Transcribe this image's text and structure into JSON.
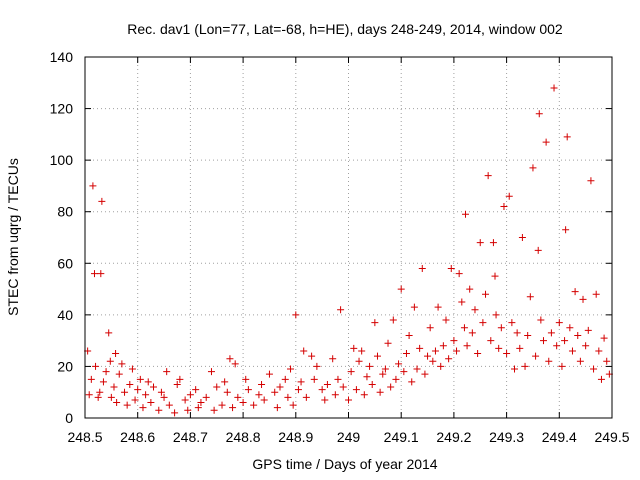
{
  "chart_data": {
    "type": "scatter",
    "title": "Rec. dav1 (Lon=77, Lat=-68, h=HE), days 248-249, 2014, window 002",
    "xlabel": "GPS time / Days of year 2014",
    "ylabel": "STEC from uqrg / TECUs",
    "xlim": [
      248.5,
      249.5
    ],
    "ylim": [
      0,
      140
    ],
    "xticks": [
      "248.5",
      "248.6",
      "248.7",
      "248.8",
      "248.9",
      "249",
      "249.1",
      "249.2",
      "249.3",
      "249.4",
      "249.5"
    ],
    "yticks": [
      "0",
      "20",
      "40",
      "60",
      "80",
      "100",
      "120",
      "140"
    ],
    "grid": true,
    "marker": "plus",
    "color": "#d40000",
    "points": [
      [
        248.505,
        26
      ],
      [
        248.508,
        9
      ],
      [
        248.512,
        15
      ],
      [
        248.515,
        90
      ],
      [
        248.518,
        56
      ],
      [
        248.52,
        20
      ],
      [
        248.525,
        8
      ],
      [
        248.528,
        10
      ],
      [
        248.532,
        84
      ],
      [
        248.535,
        14
      ],
      [
        248.53,
        56
      ],
      [
        248.54,
        18
      ],
      [
        248.545,
        33
      ],
      [
        248.548,
        22
      ],
      [
        248.55,
        8
      ],
      [
        248.555,
        12
      ],
      [
        248.558,
        25
      ],
      [
        248.56,
        6
      ],
      [
        248.565,
        17
      ],
      [
        248.57,
        21
      ],
      [
        248.575,
        10
      ],
      [
        248.58,
        5
      ],
      [
        248.585,
        13
      ],
      [
        248.59,
        19
      ],
      [
        248.595,
        7
      ],
      [
        248.6,
        11
      ],
      [
        248.605,
        15
      ],
      [
        248.61,
        4
      ],
      [
        248.615,
        9
      ],
      [
        248.62,
        14
      ],
      [
        248.625,
        6
      ],
      [
        248.63,
        12
      ],
      [
        248.64,
        3
      ],
      [
        248.645,
        10
      ],
      [
        248.65,
        8
      ],
      [
        248.655,
        18
      ],
      [
        248.66,
        5
      ],
      [
        248.67,
        2
      ],
      [
        248.675,
        13
      ],
      [
        248.68,
        15
      ],
      [
        248.69,
        7
      ],
      [
        248.695,
        3
      ],
      [
        248.7,
        9
      ],
      [
        248.71,
        11
      ],
      [
        248.715,
        4
      ],
      [
        248.72,
        6
      ],
      [
        248.73,
        8
      ],
      [
        248.74,
        18
      ],
      [
        248.745,
        3
      ],
      [
        248.75,
        12
      ],
      [
        248.76,
        5
      ],
      [
        248.765,
        14
      ],
      [
        248.77,
        10
      ],
      [
        248.775,
        23
      ],
      [
        248.78,
        4
      ],
      [
        248.785,
        21
      ],
      [
        248.79,
        8
      ],
      [
        248.8,
        6
      ],
      [
        248.805,
        15
      ],
      [
        248.81,
        11
      ],
      [
        248.82,
        5
      ],
      [
        248.83,
        9
      ],
      [
        248.835,
        13
      ],
      [
        248.84,
        7
      ],
      [
        248.85,
        17
      ],
      [
        248.86,
        10
      ],
      [
        248.865,
        4
      ],
      [
        248.87,
        12
      ],
      [
        248.88,
        15
      ],
      [
        248.885,
        8
      ],
      [
        248.89,
        19
      ],
      [
        248.895,
        5
      ],
      [
        248.9,
        40
      ],
      [
        248.905,
        11
      ],
      [
        248.91,
        14
      ],
      [
        248.915,
        26
      ],
      [
        248.92,
        8
      ],
      [
        248.93,
        24
      ],
      [
        248.935,
        15
      ],
      [
        248.94,
        20
      ],
      [
        248.95,
        11
      ],
      [
        248.955,
        7
      ],
      [
        248.96,
        13
      ],
      [
        248.97,
        23
      ],
      [
        248.975,
        9
      ],
      [
        248.98,
        15
      ],
      [
        248.985,
        42
      ],
      [
        248.99,
        12
      ],
      [
        249.0,
        7
      ],
      [
        249.005,
        18
      ],
      [
        249.01,
        27
      ],
      [
        249.015,
        11
      ],
      [
        249.02,
        22
      ],
      [
        249.025,
        26
      ],
      [
        249.03,
        9
      ],
      [
        249.035,
        16
      ],
      [
        249.04,
        20
      ],
      [
        249.045,
        13
      ],
      [
        249.05,
        37
      ],
      [
        249.055,
        24
      ],
      [
        249.06,
        10
      ],
      [
        249.065,
        17
      ],
      [
        249.07,
        19
      ],
      [
        249.075,
        29
      ],
      [
        249.08,
        12
      ],
      [
        249.085,
        38
      ],
      [
        249.09,
        15
      ],
      [
        249.095,
        21
      ],
      [
        249.1,
        50
      ],
      [
        249.105,
        18
      ],
      [
        249.11,
        25
      ],
      [
        249.115,
        32
      ],
      [
        249.12,
        14
      ],
      [
        249.125,
        43
      ],
      [
        249.13,
        19
      ],
      [
        249.135,
        27
      ],
      [
        249.14,
        58
      ],
      [
        249.145,
        17
      ],
      [
        249.15,
        24
      ],
      [
        249.155,
        35
      ],
      [
        249.16,
        22
      ],
      [
        249.165,
        26
      ],
      [
        249.17,
        43
      ],
      [
        249.175,
        20
      ],
      [
        249.18,
        28
      ],
      [
        249.185,
        38
      ],
      [
        249.19,
        23
      ],
      [
        249.195,
        58
      ],
      [
        249.2,
        30
      ],
      [
        249.205,
        26
      ],
      [
        249.21,
        56
      ],
      [
        249.215,
        45
      ],
      [
        249.22,
        35
      ],
      [
        249.222,
        79
      ],
      [
        249.225,
        28
      ],
      [
        249.23,
        50
      ],
      [
        249.235,
        33
      ],
      [
        249.24,
        42
      ],
      [
        249.245,
        25
      ],
      [
        249.25,
        68
      ],
      [
        249.255,
        37
      ],
      [
        249.26,
        48
      ],
      [
        249.265,
        94
      ],
      [
        249.27,
        30
      ],
      [
        249.275,
        68
      ],
      [
        249.278,
        55
      ],
      [
        249.28,
        40
      ],
      [
        249.285,
        27
      ],
      [
        249.29,
        35
      ],
      [
        249.295,
        82
      ],
      [
        249.3,
        25
      ],
      [
        249.305,
        86
      ],
      [
        249.31,
        37
      ],
      [
        249.315,
        19
      ],
      [
        249.32,
        33
      ],
      [
        249.325,
        27
      ],
      [
        249.33,
        70
      ],
      [
        249.335,
        20
      ],
      [
        249.34,
        32
      ],
      [
        249.345,
        47
      ],
      [
        249.35,
        97
      ],
      [
        249.355,
        24
      ],
      [
        249.36,
        65
      ],
      [
        249.362,
        118
      ],
      [
        249.365,
        38
      ],
      [
        249.37,
        30
      ],
      [
        249.375,
        107
      ],
      [
        249.38,
        22
      ],
      [
        249.385,
        33
      ],
      [
        249.39,
        128
      ],
      [
        249.395,
        28
      ],
      [
        249.4,
        37
      ],
      [
        249.405,
        20
      ],
      [
        249.41,
        30
      ],
      [
        249.412,
        73
      ],
      [
        249.415,
        109
      ],
      [
        249.42,
        35
      ],
      [
        249.425,
        26
      ],
      [
        249.43,
        49
      ],
      [
        249.435,
        32
      ],
      [
        249.44,
        22
      ],
      [
        249.445,
        46
      ],
      [
        249.45,
        28
      ],
      [
        249.455,
        34
      ],
      [
        249.46,
        92
      ],
      [
        249.465,
        19
      ],
      [
        249.47,
        48
      ],
      [
        249.475,
        26
      ],
      [
        249.48,
        15
      ],
      [
        249.485,
        31
      ],
      [
        249.49,
        22
      ],
      [
        249.495,
        17
      ]
    ]
  }
}
